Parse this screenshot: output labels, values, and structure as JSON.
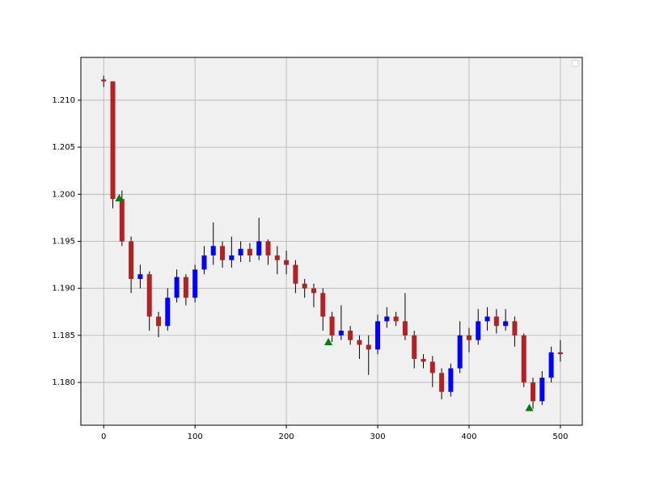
{
  "chart_data": {
    "type": "candlestick",
    "x": [
      0,
      10,
      20,
      30,
      40,
      50,
      60,
      70,
      80,
      90,
      100,
      110,
      120,
      130,
      140,
      150,
      160,
      170,
      180,
      190,
      200,
      210,
      220,
      230,
      240,
      250,
      260,
      270,
      280,
      290,
      300,
      310,
      320,
      330,
      340,
      350,
      360,
      370,
      380,
      390,
      400,
      410,
      420,
      430,
      440,
      450,
      460,
      470,
      480,
      490,
      500
    ],
    "open": [
      1.2122,
      1.212,
      1.1995,
      1.195,
      1.191,
      1.1915,
      1.187,
      1.186,
      1.189,
      1.1912,
      1.189,
      1.192,
      1.1935,
      1.1945,
      1.193,
      1.1935,
      1.1942,
      1.1935,
      1.195,
      1.1935,
      1.193,
      1.1925,
      1.1905,
      1.19,
      1.1895,
      1.187,
      1.185,
      1.1855,
      1.1845,
      1.184,
      1.1835,
      1.1865,
      1.187,
      1.1865,
      1.185,
      1.1825,
      1.1822,
      1.181,
      1.179,
      1.1815,
      1.185,
      1.1845,
      1.1865,
      1.187,
      1.186,
      1.1865,
      1.185,
      1.18,
      1.178,
      1.1805,
      1.1832
    ],
    "high": [
      1.2126,
      1.212,
      1.2004,
      1.1955,
      1.1925,
      1.1918,
      1.1875,
      1.19,
      1.192,
      1.1915,
      1.1925,
      1.1945,
      1.197,
      1.195,
      1.1955,
      1.195,
      1.1948,
      1.1975,
      1.1952,
      1.1945,
      1.194,
      1.193,
      1.191,
      1.1905,
      1.19,
      1.1875,
      1.1882,
      1.186,
      1.185,
      1.185,
      1.1872,
      1.188,
      1.1875,
      1.1895,
      1.1855,
      1.183,
      1.1828,
      1.1815,
      1.182,
      1.1865,
      1.1858,
      1.1878,
      1.188,
      1.1878,
      1.1878,
      1.187,
      1.1852,
      1.1805,
      1.1812,
      1.1838,
      1.1845
    ],
    "low": [
      1.2114,
      1.1985,
      1.1945,
      1.1895,
      1.19,
      1.1855,
      1.1848,
      1.1855,
      1.1885,
      1.1882,
      1.1885,
      1.1915,
      1.1925,
      1.1922,
      1.1922,
      1.1928,
      1.1928,
      1.193,
      1.1925,
      1.1915,
      1.1915,
      1.1895,
      1.189,
      1.188,
      1.1855,
      1.1843,
      1.1845,
      1.184,
      1.1825,
      1.1808,
      1.183,
      1.1858,
      1.186,
      1.1845,
      1.1815,
      1.1815,
      1.1795,
      1.1782,
      1.1785,
      1.181,
      1.1832,
      1.184,
      1.1855,
      1.1852,
      1.1855,
      1.1838,
      1.1795,
      1.1772,
      1.1776,
      1.18,
      1.1822
    ],
    "close": [
      1.212,
      1.1995,
      1.195,
      1.191,
      1.1915,
      1.187,
      1.186,
      1.189,
      1.1912,
      1.189,
      1.192,
      1.1935,
      1.1945,
      1.193,
      1.1935,
      1.1942,
      1.1935,
      1.195,
      1.1935,
      1.193,
      1.1925,
      1.1905,
      1.19,
      1.1895,
      1.187,
      1.185,
      1.1855,
      1.1845,
      1.184,
      1.1835,
      1.1865,
      1.187,
      1.1865,
      1.185,
      1.1825,
      1.1822,
      1.181,
      1.179,
      1.1815,
      1.185,
      1.1845,
      1.1865,
      1.187,
      1.186,
      1.1865,
      1.185,
      1.18,
      1.178,
      1.1805,
      1.1832,
      1.183
    ],
    "up_color": "#0000ff",
    "down_color": "#b22222",
    "wick_color": "#000000",
    "markers": {
      "x": [
        17,
        246,
        466
      ],
      "values": [
        1.1996,
        1.1843,
        1.1773
      ],
      "color": "#008000"
    },
    "xlim": [
      -25,
      524
    ],
    "ylim": [
      1.17545,
      1.21455
    ],
    "xticks": [
      0,
      100,
      200,
      300,
      400,
      500
    ],
    "yticks": [
      {
        "value": 1.18,
        "label": "1.180"
      },
      1.185,
      {
        "value": 1.19,
        "label": "1.190"
      },
      1.195,
      {
        "value": 1.2,
        "label": "1.200"
      },
      1.205,
      {
        "value": 1.21,
        "label": "1.210"
      }
    ],
    "grid": true
  }
}
